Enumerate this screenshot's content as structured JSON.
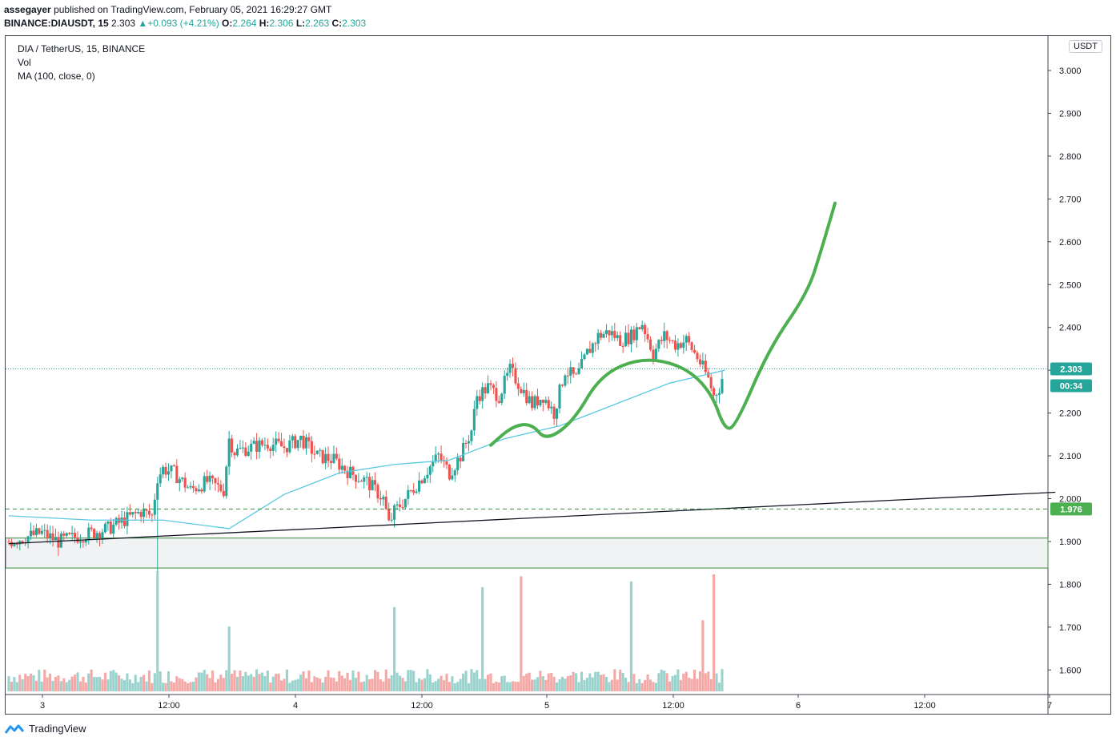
{
  "header": {
    "user": "assegayer",
    "published_text": "published on TradingView.com, February 05, 2021 16:29:27 GMT",
    "symbol": "BINANCE:DIAUSDT, 15",
    "last": "2.303",
    "change_arrow": "▲",
    "change": "+0.093 (+4.21%)",
    "o_label": "O:",
    "o_value": "2.264",
    "h_label": "H:",
    "h_value": "2.306",
    "l_label": "L:",
    "l_value": "2.263",
    "c_label": "C:",
    "c_value": "2.303"
  },
  "legend": {
    "title": "DIA / TetherUS, 15, BINANCE",
    "vol": "Vol",
    "ma": "MA (100, close, 0)"
  },
  "currency": "USDT",
  "footer": {
    "brand": "TradingView"
  },
  "colors": {
    "up": "#26a69a",
    "down": "#ef5350",
    "ma": "#5ac8e0",
    "drawing": "#4caf50",
    "trendline": "#131722",
    "zone": "#388e3c"
  },
  "chart_data": {
    "type": "candlestick",
    "title": "DIA / TetherUS, 15, BINANCE",
    "ylim": [
      1.54,
      3.05
    ],
    "y_ticks": [
      "3.000",
      "2.900",
      "2.800",
      "2.700",
      "2.600",
      "2.500",
      "2.400",
      "2.300",
      "2.200",
      "2.100",
      "2.000",
      "1.900",
      "1.800",
      "1.700",
      "1.600"
    ],
    "x_ticks": [
      "3",
      "12:00",
      "4",
      "12:00",
      "5",
      "12:00",
      "6",
      "12:00",
      "7"
    ],
    "price_path": [
      [
        0,
        1.9
      ],
      [
        6,
        1.91
      ],
      [
        12,
        1.92
      ],
      [
        18,
        1.9
      ],
      [
        24,
        1.91
      ],
      [
        30,
        1.92
      ],
      [
        36,
        1.93
      ],
      [
        42,
        1.95
      ],
      [
        48,
        1.97
      ],
      [
        52,
        1.96
      ],
      [
        54,
        2.05
      ],
      [
        56,
        2.07
      ],
      [
        60,
        2.06
      ],
      [
        66,
        2.02
      ],
      [
        72,
        2.04
      ],
      [
        78,
        2.02
      ],
      [
        80,
        2.14
      ],
      [
        82,
        2.11
      ],
      [
        88,
        2.12
      ],
      [
        94,
        2.13
      ],
      [
        100,
        2.12
      ],
      [
        106,
        2.14
      ],
      [
        112,
        2.1
      ],
      [
        118,
        2.09
      ],
      [
        124,
        2.06
      ],
      [
        130,
        2.04
      ],
      [
        136,
        2.0
      ],
      [
        138,
        1.94
      ],
      [
        140,
        1.97
      ],
      [
        144,
        2.0
      ],
      [
        150,
        2.05
      ],
      [
        156,
        2.1
      ],
      [
        160,
        2.06
      ],
      [
        164,
        2.1
      ],
      [
        168,
        2.16
      ],
      [
        170,
        2.24
      ],
      [
        174,
        2.26
      ],
      [
        178,
        2.24
      ],
      [
        182,
        2.3
      ],
      [
        186,
        2.26
      ],
      [
        190,
        2.22
      ],
      [
        194,
        2.24
      ],
      [
        198,
        2.2
      ],
      [
        202,
        2.3
      ],
      [
        206,
        2.28
      ],
      [
        210,
        2.34
      ],
      [
        214,
        2.38
      ],
      [
        218,
        2.39
      ],
      [
        222,
        2.37
      ],
      [
        226,
        2.38
      ],
      [
        230,
        2.41
      ],
      [
        234,
        2.34
      ],
      [
        238,
        2.38
      ],
      [
        242,
        2.36
      ],
      [
        246,
        2.37
      ],
      [
        250,
        2.33
      ],
      [
        254,
        2.28
      ],
      [
        256,
        2.24
      ],
      [
        258,
        2.26
      ],
      [
        260,
        2.303
      ]
    ],
    "ma_path": [
      [
        0,
        1.96
      ],
      [
        30,
        1.95
      ],
      [
        56,
        1.95
      ],
      [
        80,
        1.93
      ],
      [
        100,
        2.01
      ],
      [
        120,
        2.06
      ],
      [
        140,
        2.08
      ],
      [
        160,
        2.09
      ],
      [
        180,
        2.14
      ],
      [
        200,
        2.17
      ],
      [
        220,
        2.22
      ],
      [
        240,
        2.27
      ],
      [
        260,
        2.3
      ]
    ],
    "volume_scale_max": 1.0,
    "annotations": {
      "trendline": [
        [
          0,
          1.895
        ],
        [
          380,
          2.015
        ]
      ],
      "support_dashed": 1.976,
      "zone": [
        1.838,
        1.908
      ],
      "drawn_path": [
        [
          175,
          2.125
        ],
        [
          183,
          2.17
        ],
        [
          190,
          2.175
        ],
        [
          195,
          2.135
        ],
        [
          205,
          2.18
        ],
        [
          215,
          2.29
        ],
        [
          230,
          2.33
        ],
        [
          245,
          2.31
        ],
        [
          255,
          2.25
        ],
        [
          260,
          2.16
        ],
        [
          264,
          2.17
        ],
        [
          276,
          2.35
        ],
        [
          290,
          2.48
        ],
        [
          295,
          2.58
        ],
        [
          300,
          2.69
        ]
      ]
    },
    "last_price_label": "2.303",
    "countdown_label": "00:34",
    "support_label": "1.976"
  }
}
